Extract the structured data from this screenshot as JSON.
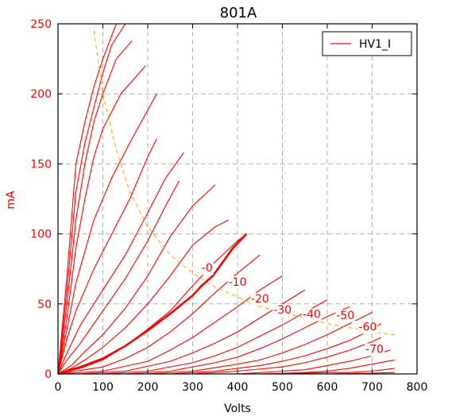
{
  "chart_data": {
    "type": "line",
    "title": "801A",
    "xlabel": "Volts",
    "ylabel": "mA",
    "xlim": [
      0,
      800
    ],
    "ylim": [
      0,
      250
    ],
    "xticks": [
      0,
      100,
      200,
      300,
      400,
      500,
      600,
      700,
      800
    ],
    "yticks": [
      0,
      50,
      100,
      150,
      200,
      250
    ],
    "grid": true,
    "legend": {
      "position": "top-right",
      "entries": [
        {
          "name": "HV1_I",
          "color": "#ff0000"
        }
      ]
    },
    "colors": {
      "curves": "#ff0000",
      "axis_text": "#ff0000",
      "load_line": "#ffa500",
      "grid": "#b0b0b0"
    },
    "series": [
      {
        "grid_volts": 24,
        "label": "",
        "x": [
          0,
          20,
          40,
          50,
          60,
          80,
          100,
          130
        ],
        "y": [
          0,
          70,
          150,
          165,
          180,
          205,
          225,
          250
        ]
      },
      {
        "grid_volts": 20,
        "label": "",
        "x": [
          0,
          20,
          40,
          60,
          80,
          100,
          120,
          150
        ],
        "y": [
          0,
          60,
          130,
          165,
          190,
          215,
          235,
          250
        ]
      },
      {
        "grid_volts": 16,
        "label": "",
        "x": [
          0,
          20,
          40,
          60,
          80,
          100,
          130,
          165
        ],
        "y": [
          0,
          50,
          110,
          150,
          180,
          200,
          225,
          238
        ]
      },
      {
        "grid_volts": 12,
        "label": "",
        "x": [
          0,
          20,
          40,
          60,
          80,
          100,
          140,
          195
        ],
        "y": [
          0,
          40,
          90,
          125,
          155,
          175,
          200,
          220
        ]
      },
      {
        "grid_volts": 8,
        "label": "",
        "x": [
          0,
          20,
          40,
          80,
          120,
          160,
          220
        ],
        "y": [
          0,
          32,
          65,
          110,
          140,
          165,
          200
        ]
      },
      {
        "grid_volts": 4,
        "label": "",
        "x": [
          0,
          20,
          40,
          80,
          120,
          160,
          200,
          220
        ],
        "y": [
          0,
          25,
          45,
          75,
          100,
          125,
          155,
          168
        ]
      },
      {
        "grid_volts": 0,
        "label": "-0",
        "x": [
          0,
          20,
          50,
          100,
          150,
          200,
          240,
          280
        ],
        "y": [
          0,
          15,
          35,
          60,
          85,
          115,
          140,
          158
        ]
      },
      {
        "grid_volts": -5,
        "label": "",
        "x": [
          0,
          20,
          50,
          100,
          150,
          200,
          240,
          270
        ],
        "y": [
          0,
          10,
          22,
          45,
          68,
          95,
          120,
          138
        ]
      },
      {
        "grid_volts": -10,
        "label": "-10",
        "x": [
          0,
          30,
          60,
          100,
          150,
          200,
          250,
          300,
          350
        ],
        "y": [
          0,
          6,
          16,
          28,
          47,
          70,
          98,
          120,
          135
        ]
      },
      {
        "grid_volts": -15,
        "label": "",
        "x": [
          0,
          30,
          60,
          100,
          150,
          200,
          250,
          300,
          350,
          380
        ],
        "y": [
          0,
          4,
          10,
          19,
          33,
          50,
          70,
          92,
          105,
          110
        ]
      },
      {
        "grid_volts": -20,
        "label": "-20",
        "x": [
          0,
          50,
          100,
          150,
          200,
          250,
          300,
          350,
          400,
          420
        ],
        "y": [
          0,
          4,
          10,
          20,
          32,
          45,
          63,
          80,
          95,
          100
        ]
      },
      {
        "grid_volts": -25,
        "label": "",
        "x": [
          0,
          100,
          150,
          200,
          250,
          300,
          350,
          400,
          450
        ],
        "y": [
          0,
          5,
          11,
          19,
          30,
          43,
          58,
          72,
          85
        ]
      },
      {
        "grid_volts": -30,
        "label": "-30",
        "x": [
          0,
          100,
          200,
          250,
          300,
          350,
          400,
          450,
          500
        ],
        "y": [
          0,
          2,
          9,
          17,
          26,
          37,
          48,
          60,
          70
        ]
      },
      {
        "grid_volts": -35,
        "label": "",
        "x": [
          50,
          150,
          250,
          300,
          350,
          400,
          450,
          500,
          550
        ],
        "y": [
          0,
          2,
          9,
          15,
          22,
          30,
          40,
          50,
          60
        ]
      },
      {
        "grid_volts": -40,
        "label": "-40",
        "x": [
          100,
          200,
          300,
          350,
          400,
          450,
          500,
          550,
          600
        ],
        "y": [
          0,
          2,
          8,
          13,
          19,
          27,
          35,
          44,
          53
        ]
      },
      {
        "grid_volts": -45,
        "label": "",
        "x": [
          150,
          250,
          350,
          400,
          450,
          500,
          550,
          600,
          650
        ],
        "y": [
          0,
          2,
          8,
          12,
          18,
          25,
          33,
          41,
          48
        ]
      },
      {
        "grid_volts": -50,
        "label": "-50",
        "x": [
          200,
          300,
          400,
          450,
          500,
          550,
          600,
          650,
          700
        ],
        "y": [
          0,
          2,
          7,
          10,
          15,
          21,
          28,
          36,
          44
        ]
      },
      {
        "grid_volts": -55,
        "label": "",
        "x": [
          250,
          350,
          450,
          500,
          550,
          600,
          650,
          700,
          720
        ],
        "y": [
          0,
          2,
          6,
          9,
          13,
          18,
          24,
          32,
          36
        ]
      },
      {
        "grid_volts": -60,
        "label": "-60",
        "x": [
          300,
          400,
          500,
          550,
          600,
          650,
          700,
          720
        ],
        "y": [
          0,
          2,
          5,
          8,
          12,
          17,
          23,
          26
        ]
      },
      {
        "grid_volts": -65,
        "label": "",
        "x": [
          400,
          500,
          550,
          600,
          650,
          700,
          740
        ],
        "y": [
          0,
          2,
          3,
          6,
          9,
          13,
          17
        ]
      },
      {
        "grid_volts": -70,
        "label": "-70",
        "x": [
          450,
          550,
          600,
          650,
          700,
          750
        ],
        "y": [
          0,
          1,
          2,
          4,
          7,
          10
        ]
      },
      {
        "grid_volts": -75,
        "label": "",
        "x": [
          500,
          600,
          650,
          700,
          750
        ],
        "y": [
          0,
          1,
          1,
          2,
          4
        ]
      },
      {
        "grid_volts": -80,
        "label": "",
        "x": [
          600,
          700,
          750
        ],
        "y": [
          0,
          0.5,
          1
        ]
      }
    ],
    "load_line": {
      "x": [
        80,
        100,
        130,
        160,
        200,
        250,
        300,
        350,
        400,
        450,
        500,
        550,
        600,
        650,
        700,
        750
      ],
      "y": [
        245,
        200,
        160,
        130,
        105,
        85,
        72,
        62,
        55,
        48,
        44,
        40,
        36,
        33,
        30,
        28
      ]
    },
    "highlighted": {
      "x": [
        0,
        20,
        50,
        100,
        150,
        200,
        250,
        300,
        320,
        345,
        390,
        420
      ],
      "y": [
        0,
        2,
        5,
        11,
        20,
        31,
        43,
        56,
        63,
        70,
        90,
        100
      ]
    },
    "curve_labels": [
      {
        "text": "-0",
        "x": 320,
        "y": 73
      },
      {
        "text": "-10",
        "x": 380,
        "y": 63
      },
      {
        "text": "-20",
        "x": 430,
        "y": 51
      },
      {
        "text": "-30",
        "x": 480,
        "y": 43
      },
      {
        "text": "-40",
        "x": 545,
        "y": 40
      },
      {
        "text": "-50",
        "x": 620,
        "y": 39
      },
      {
        "text": "-60",
        "x": 670,
        "y": 31
      },
      {
        "text": "-70",
        "x": 685,
        "y": 15
      }
    ]
  }
}
